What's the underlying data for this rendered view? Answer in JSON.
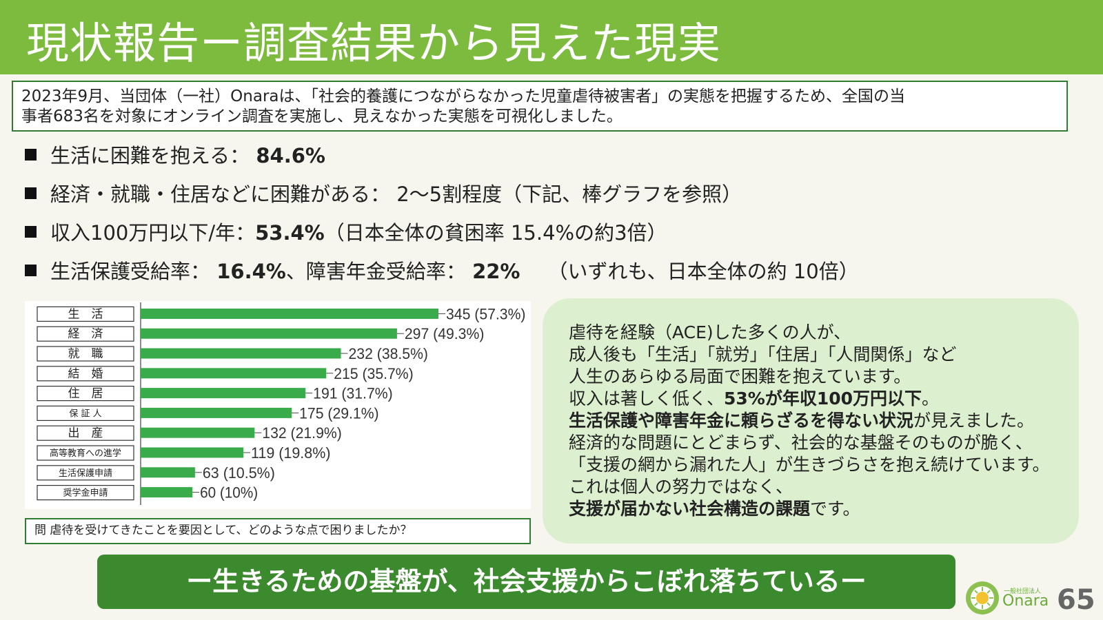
{
  "title": "現状報告ー調査結果から見えた現実",
  "intro": {
    "line1": "2023年9月、当団体（一社）Onaraは、「社会的養護につながらなかった児童虐待被害者」の実態を把握するため、全国の当",
    "line2": "事者683名を対象にオンライン調査を実施し、見えなかった実態を可視化しました。"
  },
  "bullets": [
    {
      "pre": "生活に困難を抱える：",
      "bold": "84.6%",
      "post": ""
    },
    {
      "pre": "経済・就職・住居などに困難がある：  2〜5割程度（下記、棒グラフを参照）",
      "bold": "",
      "post": ""
    },
    {
      "pre": "収入100万円以下/年：",
      "bold": "53.4%",
      "post": "（日本全体の貧困率 15.4%の約3倍）"
    },
    {
      "pre": "生活保護受給率：",
      "bold": "16.4%",
      "post": "、障害年金受給率：",
      "bold2": "22%",
      "post2": "（いずれも、日本全体の約 10倍）"
    }
  ],
  "chart_data": {
    "type": "bar",
    "orientation": "horizontal",
    "categories": [
      "生　活",
      "経　済",
      "就　職",
      "結　婚",
      "住　居",
      "保 証 人",
      "出　産",
      "高等教育への進学",
      "生活保護申請",
      "奨学金申請"
    ],
    "values": [
      345,
      297,
      232,
      215,
      191,
      175,
      132,
      119,
      63,
      60
    ],
    "labels": [
      "345 (57.3%)",
      "297 (49.3%)",
      "232 (38.5%)",
      "215 (35.7%)",
      "191 (31.7%)",
      "175 (29.1%)",
      "132 (21.9%)",
      "119 (19.8%)",
      "63 (10.5%)",
      "60 (10%)"
    ],
    "xlim": [
      0,
      345
    ],
    "color": "#3aab4a",
    "question": "問 虐待を受けてきたことを要因として、どのような点で困りましたか？"
  },
  "summary": {
    "l1": "虐待を経験（ACE)した多くの人が、",
    "l2": "成人後も「生活」「就労」「住居」「人間関係」など",
    "l3": "人生のあらゆる局面で困難を抱えています。",
    "l4a": "収入は著しく低く、",
    "l4b": "53%が年収100万円以下",
    "l4c": "。",
    "l5a": "生活保護や障害年金に頼らざるを得ない状況",
    "l5b": "が見えました。",
    "l6": "経済的な問題にとどまらず、社会的な基盤そのものが脆く、",
    "l7": "「支援の網から漏れた人」が生きづらさを抱え続けています。",
    "l8": "これは個人の努力ではなく、",
    "l9a": "支援が届かない社会構造の課題",
    "l9b": "です。"
  },
  "banner": "ー生きるための基盤が、社会支援からこぼれ落ちているー",
  "logo": {
    "small": "一般社団法人",
    "name": "Onara"
  },
  "page_number": "65",
  "colors": {
    "title_bg": "#7dbb3f",
    "box_border": "#2f7d32",
    "panel_bg": "#dcefcf",
    "banner_bg": "#3c8a2e",
    "bar": "#3aab4a"
  }
}
